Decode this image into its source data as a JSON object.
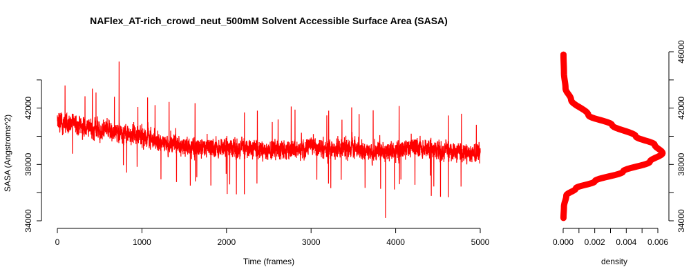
{
  "chart_data": [
    {
      "type": "line",
      "title": "NAFlex_AT-rich_crowd_neut_500mM Solvent Accessible Surface Area (SASA)",
      "xlabel": "Time (frames)",
      "ylabel": "SASA (Angstroms^2)",
      "xlim": [
        0,
        5000
      ],
      "ylim": [
        34000,
        46000
      ],
      "xticks": [
        "0",
        "1000",
        "2000",
        "3000",
        "4000",
        "5000"
      ],
      "yticks": [
        "34000",
        "38000",
        "42000"
      ],
      "line_color": "#ff0000",
      "grid": false,
      "series_summary": {
        "n_frames": 5000,
        "level_start": 41000,
        "level_end": 39000,
        "typical_min": 35500,
        "typical_max": 44500,
        "observed_max": 45300,
        "observed_min": 34200
      },
      "series": [
        {
          "x": [
            0,
            250,
            500,
            750,
            1000,
            1250,
            1500,
            1750,
            2000,
            2250,
            2500,
            2750,
            3000,
            3250,
            3500,
            3750,
            4000,
            4250,
            4500,
            4750,
            5000
          ],
          "values": [
            41000,
            40800,
            40500,
            40300,
            40000,
            39600,
            39300,
            39200,
            39300,
            39200,
            39000,
            39100,
            39300,
            39100,
            39200,
            38900,
            39000,
            39300,
            39100,
            38900,
            38800
          ]
        }
      ]
    },
    {
      "type": "line",
      "xlabel": "density",
      "xlim": [
        0,
        0.006
      ],
      "ylim": [
        34000,
        46000
      ],
      "xticks": [
        "0.000",
        "0.002",
        "0.004",
        "0.006"
      ],
      "yticks": [
        "34000",
        "38000",
        "42000",
        "46000"
      ],
      "line_color": "#ff0000",
      "series": [
        {
          "x": [
            2e-05,
            5e-05,
            0.0002,
            0.0008,
            0.002,
            0.0038,
            0.0055,
            0.0063,
            0.0058,
            0.0046,
            0.0031,
            0.0016,
            0.0005,
            0.00015,
            5e-05,
            2e-05
          ],
          "values": [
            34200,
            35000,
            35800,
            36300,
            36800,
            37500,
            38200,
            38800,
            39400,
            40000,
            40800,
            41500,
            42600,
            43400,
            44500,
            45800
          ]
        }
      ]
    }
  ]
}
